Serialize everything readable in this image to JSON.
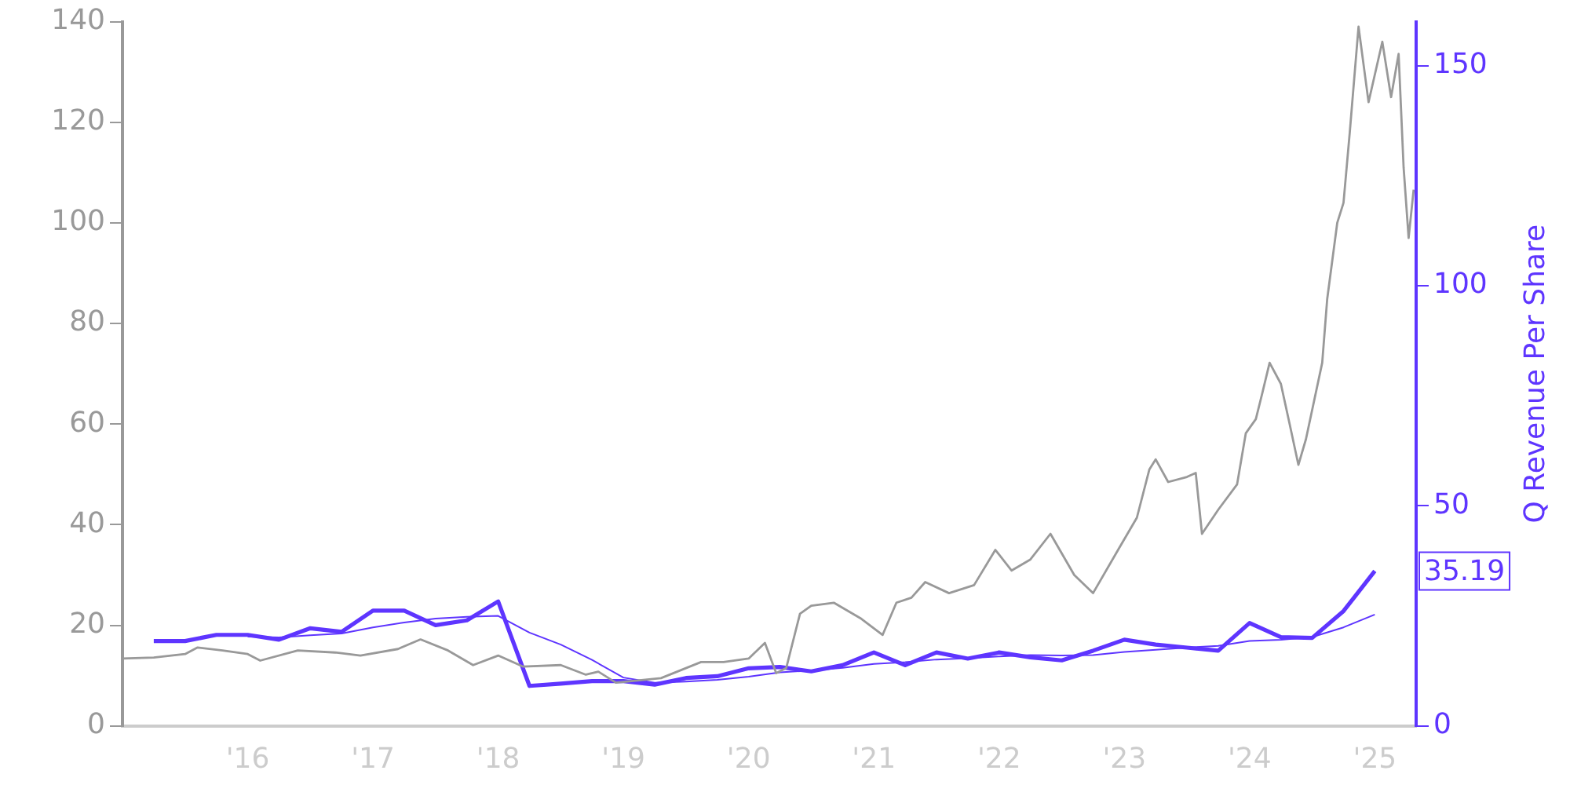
{
  "chart_data": {
    "type": "line",
    "y2label": "Q Revenue Per Share",
    "xlim": [
      2015,
      2025.33
    ],
    "ylim": [
      0,
      140
    ],
    "y2lim": [
      0,
      160
    ],
    "xticks": [
      {
        "value": 2016,
        "label": "'16"
      },
      {
        "value": 2017,
        "label": "'17"
      },
      {
        "value": 2018,
        "label": "'18"
      },
      {
        "value": 2019,
        "label": "'19"
      },
      {
        "value": 2020,
        "label": "'20"
      },
      {
        "value": 2021,
        "label": "'21"
      },
      {
        "value": 2022,
        "label": "'22"
      },
      {
        "value": 2023,
        "label": "'23"
      },
      {
        "value": 2024,
        "label": "'24"
      },
      {
        "value": 2025,
        "label": "'25"
      }
    ],
    "yticks": [
      0,
      20,
      40,
      60,
      80,
      100,
      120,
      140
    ],
    "y2ticks": [
      0,
      50,
      100,
      150
    ],
    "grid": false,
    "legend": false,
    "marker": "none",
    "line_style": "solid",
    "series": [
      {
        "color": "#999999",
        "x": [
          2015,
          2015.25,
          2015.5,
          2015.6,
          2015.8,
          2016,
          2016.1,
          2016.4,
          2016.7,
          2016.9,
          2017.2,
          2017.38,
          2017.6,
          2017.8,
          2018,
          2018.2,
          2018.5,
          2018.7,
          2018.8,
          2018.94,
          2019.3,
          2019.62,
          2019.8,
          2020,
          2020.13,
          2020.22,
          2020.3,
          2020.41,
          2020.5,
          2020.68,
          2020.9,
          2021.07,
          2021.18,
          2021.3,
          2021.41,
          2021.6,
          2021.8,
          2021.97,
          2022.1,
          2022.25,
          2022.41,
          2022.6,
          2022.75,
          2022.95,
          2023.1,
          2023.2,
          2023.25,
          2023.35,
          2023.5,
          2023.57,
          2023.62,
          2023.75,
          2023.9,
          2023.97,
          2024.05,
          2024.1,
          2024.16,
          2024.25,
          2024.32,
          2024.39,
          2024.45,
          2024.58,
          2024.62,
          2024.7,
          2024.75,
          2024.8,
          2024.87,
          2024.95,
          2025.06,
          2025.13,
          2025.19,
          2025.23,
          2025.27,
          2025.31
        ],
        "values": [
          13.4,
          13.6,
          14.3,
          15.6,
          15,
          14.3,
          13,
          15,
          14.6,
          14,
          15.3,
          17.2,
          15,
          12.1,
          14,
          11.8,
          12.1,
          10.2,
          10.8,
          8.6,
          9.5,
          12.7,
          12.7,
          13.4,
          16.5,
          10.5,
          11.5,
          22.3,
          23.9,
          24.5,
          21.3,
          18.1,
          24.5,
          25.5,
          28.6,
          26.4,
          28,
          35,
          30.9,
          33.1,
          38.2,
          30,
          26.4,
          35,
          41.4,
          51,
          53,
          48.5,
          49.5,
          50.3,
          38.2,
          43,
          48,
          58.2,
          61,
          66,
          72.2,
          68,
          60,
          51.9,
          57,
          72.2,
          84.9,
          100,
          104,
          118,
          139,
          124,
          136,
          125,
          133.6,
          111,
          97,
          106.6
        ]
      },
      {
        "color": "#5e35ff",
        "axis": "y2",
        "x": [
          2015.25,
          2015.5,
          2015.75,
          2016,
          2016.25,
          2016.5,
          2016.75,
          2017,
          2017.25,
          2017.5,
          2017.75,
          2018,
          2018.25,
          2018.5,
          2018.75,
          2019,
          2019.25,
          2019.5,
          2019.75,
          2020,
          2020.25,
          2020.5,
          2020.75,
          2021,
          2021.25,
          2021.5,
          2021.75,
          2022,
          2022.25,
          2022.5,
          2022.75,
          2023,
          2023.25,
          2023.5,
          2023.75,
          2024,
          2024.25,
          2024.5,
          2024.75,
          2025
        ],
        "values": [
          19.3,
          19.3,
          20.7,
          20.7,
          19.6,
          22.2,
          21.4,
          26.2,
          26.2,
          22.9,
          24,
          28.3,
          9.1,
          9.6,
          10.2,
          10.2,
          9.4,
          10.9,
          11.3,
          13.1,
          13.4,
          12.4,
          13.8,
          16.7,
          13.8,
          16.7,
          15.3,
          16.7,
          15.6,
          14.9,
          17.1,
          19.6,
          18.5,
          17.8,
          17.1,
          23.4,
          20.2,
          20,
          26.1,
          35.19
        ],
        "value_labels": [
          null,
          null,
          null,
          null,
          null,
          null,
          null,
          null,
          null,
          null,
          null,
          null,
          null,
          null,
          null,
          null,
          null,
          null,
          null,
          null,
          null,
          null,
          null,
          null,
          null,
          null,
          null,
          null,
          null,
          null,
          null,
          null,
          null,
          null,
          null,
          null,
          null,
          null,
          null,
          "35.19"
        ]
      },
      {
        "color": "#5e35ff",
        "axis": "y2",
        "x": [
          2016,
          2016.25,
          2016.5,
          2016.75,
          2017,
          2017.25,
          2017.5,
          2017.75,
          2018,
          2018.25,
          2018.5,
          2018.75,
          2019,
          2019.25,
          2019.5,
          2019.75,
          2020,
          2020.25,
          2020.5,
          2020.75,
          2021,
          2021.25,
          2021.5,
          2021.75,
          2022,
          2022.25,
          2022.5,
          2022.75,
          2023,
          2023.25,
          2023.5,
          2023.75,
          2024,
          2024.25,
          2024.5,
          2024.75,
          2025
        ],
        "values": [
          20.3,
          20.1,
          20.6,
          21,
          22.4,
          23.5,
          24.4,
          24.8,
          25,
          21.2,
          18.5,
          15,
          11,
          9.8,
          10.1,
          10.5,
          11.2,
          12.2,
          12.6,
          13.2,
          14.1,
          14.5,
          15.1,
          15.4,
          15.8,
          16.1,
          16,
          16.1,
          16.8,
          17.3,
          17.8,
          18.2,
          19.3,
          19.6,
          20.2,
          22.4,
          25.3
        ]
      }
    ]
  }
}
